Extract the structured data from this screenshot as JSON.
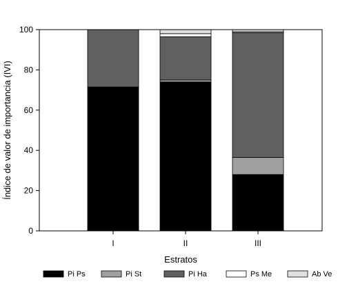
{
  "chart_data": {
    "type": "bar",
    "stacked": true,
    "title": "",
    "xlabel": "Estratos",
    "ylabel": "Índice de valor de importancia (IVI)",
    "ylim": [
      0,
      100
    ],
    "yticks": [
      0,
      20,
      40,
      60,
      80,
      100
    ],
    "categories": [
      "I",
      "II",
      "III"
    ],
    "grid": false,
    "legend_position": "bottom",
    "series": [
      {
        "name": "Pi Ps",
        "color": "#000000",
        "values": [
          71.5,
          74.0,
          28.0
        ]
      },
      {
        "name": "Pi St",
        "color": "#a0a0a0",
        "values": [
          0.0,
          1.0,
          8.5
        ]
      },
      {
        "name": "Pi Ha",
        "color": "#606060",
        "values": [
          28.5,
          21.5,
          62.0
        ]
      },
      {
        "name": "Ps Me",
        "color": "#ffffff",
        "values": [
          0.0,
          1.5,
          0.5
        ]
      },
      {
        "name": "Ab Ve",
        "color": "#e0e0e0",
        "values": [
          0.0,
          2.0,
          1.0
        ]
      }
    ]
  }
}
